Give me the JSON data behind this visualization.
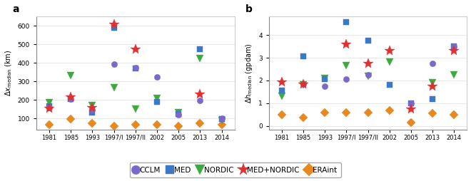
{
  "x_labels": [
    "1981",
    "1985",
    "1993",
    "1997/I",
    "1997/II",
    "2002",
    "2005",
    "2013",
    "2014"
  ],
  "x_positions": [
    0,
    1,
    2,
    3,
    4,
    5,
    6,
    7,
    8
  ],
  "panel_a": {
    "title": "a",
    "ylabel": "$\\Delta x_{\\rm median}$ (km)",
    "ylim": [
      40,
      650
    ],
    "yticks": [
      100,
      200,
      300,
      400,
      500,
      600
    ],
    "CCLM": [
      160,
      205,
      145,
      395,
      375,
      325,
      120,
      195,
      100
    ],
    "MED": [
      165,
      205,
      130,
      590,
      370,
      190,
      125,
      475,
      95
    ],
    "NORDIC": [
      185,
      330,
      170,
      265,
      150,
      210,
      130,
      425,
      90
    ],
    "MED+NORDIC": [
      155,
      215,
      160,
      610,
      475,
      null,
      null,
      230,
      null
    ],
    "ERAint": [
      65,
      95,
      75,
      60,
      65,
      65,
      60,
      75,
      65
    ]
  },
  "panel_b": {
    "title": "b",
    "ylabel": "$\\Delta h_{\\rm median}$ (gpdam)",
    "ylim": [
      -0.15,
      4.8
    ],
    "yticks": [
      0,
      1,
      2,
      3,
      4
    ],
    "CCLM": [
      null,
      1.85,
      1.75,
      2.05,
      2.25,
      null,
      1.0,
      2.75,
      3.5
    ],
    "MED": [
      1.55,
      3.05,
      2.05,
      4.55,
      3.75,
      1.8,
      1.0,
      1.2,
      3.5
    ],
    "NORDIC": [
      1.3,
      1.8,
      2.1,
      2.65,
      2.2,
      2.8,
      null,
      1.9,
      2.25
    ],
    "MED+NORDIC": [
      1.95,
      1.85,
      null,
      3.6,
      2.75,
      3.3,
      0.75,
      1.75,
      3.3
    ],
    "ERAint": [
      0.5,
      0.38,
      0.6,
      0.6,
      0.58,
      0.68,
      0.15,
      0.55,
      0.5
    ]
  },
  "colors": {
    "CCLM": "#7b68c8",
    "MED": "#3c78c8",
    "NORDIC": "#3caa3c",
    "MED+NORDIC": "#e03030",
    "ERAint": "#e88820"
  },
  "markers": {
    "CCLM": "o",
    "MED": "s",
    "NORDIC": "v",
    "MED+NORDIC": "*",
    "ERAint": "D"
  },
  "marker_sizes": {
    "CCLM": 6,
    "MED": 6,
    "NORDIC": 7,
    "MED+NORDIC": 10,
    "ERAint": 6
  },
  "legend_marker_sizes": {
    "CCLM": 9,
    "MED": 9,
    "NORDIC": 10,
    "MED+NORDIC": 13,
    "ERAint": 9
  },
  "legend_labels": [
    "CCLM",
    "MED",
    "NORDIC",
    "MED+NORDIC",
    "ERAint"
  ],
  "background_color": "#ffffff"
}
